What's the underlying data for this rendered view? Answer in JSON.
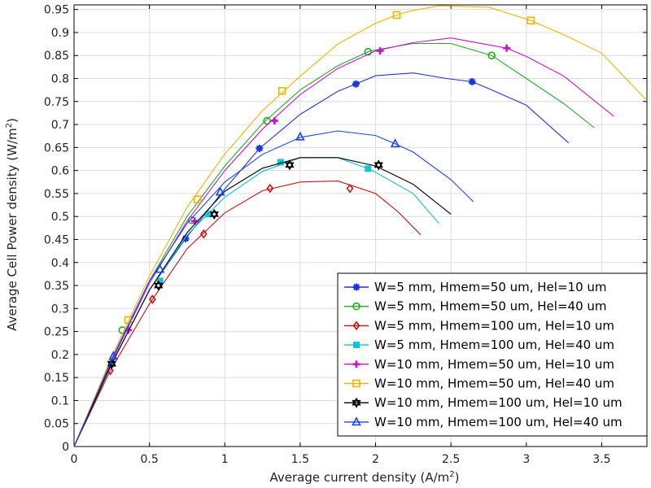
{
  "chart_data": {
    "type": "line",
    "title": "",
    "xlabel": "Average current density (A/m",
    "xlabel_sup": "2",
    "xlabel_end": ")",
    "ylabel": "Average Cell Power density (W/m",
    "ylabel_sup": "2",
    "ylabel_end": ")",
    "xlim": [
      0,
      3.8
    ],
    "ylim": [
      0,
      0.96
    ],
    "xticks": [
      0,
      0.5,
      1,
      1.5,
      2,
      2.5,
      3,
      3.5
    ],
    "xtick_labels": [
      "0",
      "0.5",
      "1",
      "1.5",
      "2",
      "2.5",
      "3",
      "3.5"
    ],
    "yticks": [
      0,
      0.05,
      0.1,
      0.15,
      0.2,
      0.25,
      0.3,
      0.35,
      0.4,
      0.45,
      0.5,
      0.55,
      0.6,
      0.65,
      0.7,
      0.75,
      0.8,
      0.85,
      0.9,
      0.95
    ],
    "ytick_labels": [
      "0",
      "0.05",
      "0.1",
      "0.15",
      "0.2",
      "0.25",
      "0.3",
      "0.35",
      "0.4",
      "0.45",
      "0.5",
      "0.55",
      "0.6",
      "0.65",
      "0.7",
      "0.75",
      "0.8",
      "0.85",
      "0.9",
      "0.95"
    ],
    "grid": true,
    "legend_position": "bottom-right",
    "series": [
      {
        "name": "W=5 mm, Hmem=50 um, Hel=10 um",
        "color": "#1a33e6",
        "marker": "asterisk",
        "x": [
          0,
          0.25,
          0.5,
          0.74,
          1.0,
          1.23,
          1.5,
          1.75,
          1.87,
          2.0,
          2.25,
          2.47,
          2.64,
          2.75,
          3.0,
          3.28
        ],
        "y": [
          0,
          0.18,
          0.34,
          0.452,
          0.56,
          0.648,
          0.722,
          0.772,
          0.788,
          0.806,
          0.812,
          0.8,
          0.793,
          0.778,
          0.742,
          0.66
        ],
        "markers_x": [
          0.74,
          1.23,
          1.87,
          2.64
        ],
        "markers_y": [
          0.452,
          0.648,
          0.788,
          0.793
        ]
      },
      {
        "name": "W=5 mm, Hmem=50 um, Hel=40 um",
        "color": "#22aa22",
        "marker": "circle",
        "x": [
          0,
          0.25,
          0.5,
          0.75,
          1.0,
          1.25,
          1.5,
          1.75,
          1.95,
          2.0,
          2.25,
          2.5,
          2.77,
          3.0,
          3.25,
          3.45
        ],
        "y": [
          0,
          0.19,
          0.36,
          0.5,
          0.61,
          0.702,
          0.775,
          0.828,
          0.858,
          0.862,
          0.876,
          0.876,
          0.85,
          0.8,
          0.745,
          0.693
        ],
        "markers_x": [
          0.32,
          0.78,
          1.28,
          1.95,
          2.77
        ],
        "markers_y": [
          0.253,
          0.492,
          0.708,
          0.858,
          0.85
        ]
      },
      {
        "name": "W=5 mm, Hmem=100 um, Hel=10 um",
        "color": "#cc1111",
        "marker": "diamond",
        "x": [
          0,
          0.24,
          0.5,
          0.75,
          1.0,
          1.25,
          1.5,
          1.75,
          2.0,
          2.15,
          2.3
        ],
        "y": [
          0,
          0.165,
          0.31,
          0.43,
          0.508,
          0.556,
          0.575,
          0.577,
          0.55,
          0.51,
          0.46
        ],
        "markers_x": [
          0.24,
          0.52,
          0.86,
          1.3,
          1.83
        ],
        "markers_y": [
          0.165,
          0.32,
          0.462,
          0.561,
          0.561
        ]
      },
      {
        "name": "W=5 mm, Hmem=100 um, Hel=40 um",
        "color": "#11c4d4",
        "marker": "square",
        "x": [
          0,
          0.25,
          0.5,
          0.75,
          1.0,
          1.25,
          1.5,
          1.75,
          1.95,
          2.0,
          2.25,
          2.42
        ],
        "y": [
          0,
          0.18,
          0.34,
          0.46,
          0.542,
          0.598,
          0.628,
          0.628,
          0.604,
          0.596,
          0.55,
          0.485
        ],
        "markers_x": [
          0.25,
          0.57,
          0.89,
          1.37,
          1.95
        ],
        "markers_y": [
          0.18,
          0.36,
          0.505,
          0.618,
          0.604
        ]
      },
      {
        "name": "W=10 mm, Hmem=50 um, Hel=10 um",
        "color": "#cc11cc",
        "marker": "plus",
        "x": [
          0,
          0.25,
          0.5,
          0.75,
          1.0,
          1.25,
          1.5,
          1.75,
          2.0,
          2.25,
          2.5,
          2.87,
          3.0,
          3.25,
          3.58
        ],
        "y": [
          0,
          0.185,
          0.355,
          0.49,
          0.6,
          0.69,
          0.765,
          0.822,
          0.86,
          0.878,
          0.888,
          0.866,
          0.848,
          0.805,
          0.718
        ],
        "markers_x": [
          0.36,
          0.8,
          1.33,
          2.03,
          2.87
        ],
        "markers_y": [
          0.253,
          0.49,
          0.708,
          0.86,
          0.866
        ]
      },
      {
        "name": "W=10 mm, Hmem=50 um, Hel=40 um",
        "color": "#f0b400",
        "marker": "square-open",
        "x": [
          0,
          0.25,
          0.5,
          0.75,
          1.0,
          1.25,
          1.5,
          1.75,
          2.0,
          2.14,
          2.25,
          2.42,
          2.75,
          3.03,
          3.25,
          3.5,
          3.8
        ],
        "y": [
          0,
          0.195,
          0.37,
          0.52,
          0.636,
          0.73,
          0.805,
          0.875,
          0.92,
          0.938,
          0.948,
          0.958,
          0.955,
          0.926,
          0.895,
          0.855,
          0.752
        ],
        "markers_x": [
          0.36,
          0.82,
          1.38,
          2.14,
          3.03
        ],
        "markers_y": [
          0.275,
          0.537,
          0.773,
          0.938,
          0.926
        ]
      },
      {
        "name": "W=10 mm, Hmem=100 um, Hel=10 um",
        "color": "#000000",
        "marker": "star",
        "x": [
          0,
          0.25,
          0.5,
          0.75,
          1.0,
          1.25,
          1.5,
          1.75,
          2.0,
          2.25,
          2.5
        ],
        "y": [
          0,
          0.18,
          0.34,
          0.465,
          0.555,
          0.605,
          0.628,
          0.628,
          0.61,
          0.57,
          0.505
        ],
        "markers_x": [
          0.25,
          0.56,
          0.93,
          1.43,
          2.02
        ],
        "markers_y": [
          0.18,
          0.35,
          0.505,
          0.612,
          0.612
        ]
      },
      {
        "name": "W=10 mm, Hmem=100 um, Hel=40 um",
        "color": "#1a44ee",
        "marker": "triangle",
        "x": [
          0,
          0.26,
          0.5,
          0.75,
          1.0,
          1.25,
          1.5,
          1.75,
          2.0,
          2.13,
          2.25,
          2.5,
          2.65
        ],
        "y": [
          0,
          0.196,
          0.36,
          0.485,
          0.575,
          0.635,
          0.672,
          0.686,
          0.676,
          0.658,
          0.64,
          0.58,
          0.532
        ],
        "markers_x": [
          0.26,
          0.57,
          0.97,
          1.5,
          2.13
        ],
        "markers_y": [
          0.196,
          0.385,
          0.553,
          0.673,
          0.658
        ]
      }
    ]
  }
}
